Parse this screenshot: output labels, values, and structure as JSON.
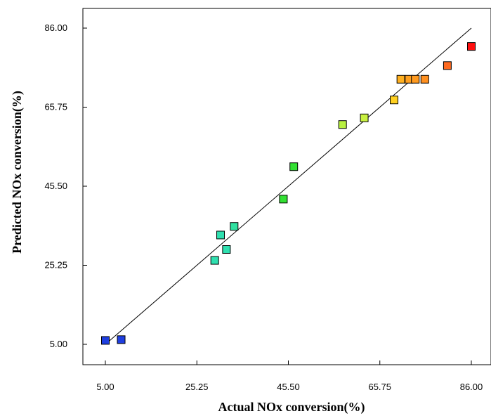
{
  "chart_data": {
    "type": "scatter",
    "title": "",
    "xlabel": "Actual NOx conversion(%)",
    "ylabel": "Predicted NOx conversion(%)",
    "xlim": [
      5.0,
      86.0
    ],
    "ylim": [
      5.0,
      86.0
    ],
    "x_ticks": [
      "5.00",
      "25.25",
      "45.50",
      "65.75",
      "86.00"
    ],
    "y_ticks": [
      "5.00",
      "25.25",
      "45.50",
      "65.75",
      "86.00"
    ],
    "grid": false,
    "legend": "none",
    "reference_line": {
      "x": [
        5.0,
        86.0
      ],
      "y": [
        5.0,
        86.0
      ],
      "color": "#000000"
    },
    "points": [
      {
        "x": 5.0,
        "y": 6.0,
        "color": "#1f3fe0"
      },
      {
        "x": 8.5,
        "y": 6.2,
        "color": "#1f3fe0"
      },
      {
        "x": 29.2,
        "y": 26.5,
        "color": "#2fe0b0"
      },
      {
        "x": 30.5,
        "y": 33.0,
        "color": "#2fe0b0"
      },
      {
        "x": 31.8,
        "y": 29.3,
        "color": "#2fe0b0"
      },
      {
        "x": 33.5,
        "y": 35.2,
        "color": "#2fe0a0"
      },
      {
        "x": 44.4,
        "y": 42.2,
        "color": "#33e033"
      },
      {
        "x": 46.7,
        "y": 50.5,
        "color": "#33e033"
      },
      {
        "x": 57.5,
        "y": 61.3,
        "color": "#b8f040"
      },
      {
        "x": 62.3,
        "y": 63.0,
        "color": "#c8f040"
      },
      {
        "x": 68.9,
        "y": 67.6,
        "color": "#ffd020"
      },
      {
        "x": 70.4,
        "y": 72.9,
        "color": "#ffb020"
      },
      {
        "x": 72.2,
        "y": 72.9,
        "color": "#ffa020"
      },
      {
        "x": 73.6,
        "y": 72.9,
        "color": "#ff9a20"
      },
      {
        "x": 75.7,
        "y": 72.9,
        "color": "#ff9020"
      },
      {
        "x": 80.7,
        "y": 76.4,
        "color": "#ff6a20"
      },
      {
        "x": 86.0,
        "y": 81.3,
        "color": "#ff1010"
      }
    ]
  }
}
